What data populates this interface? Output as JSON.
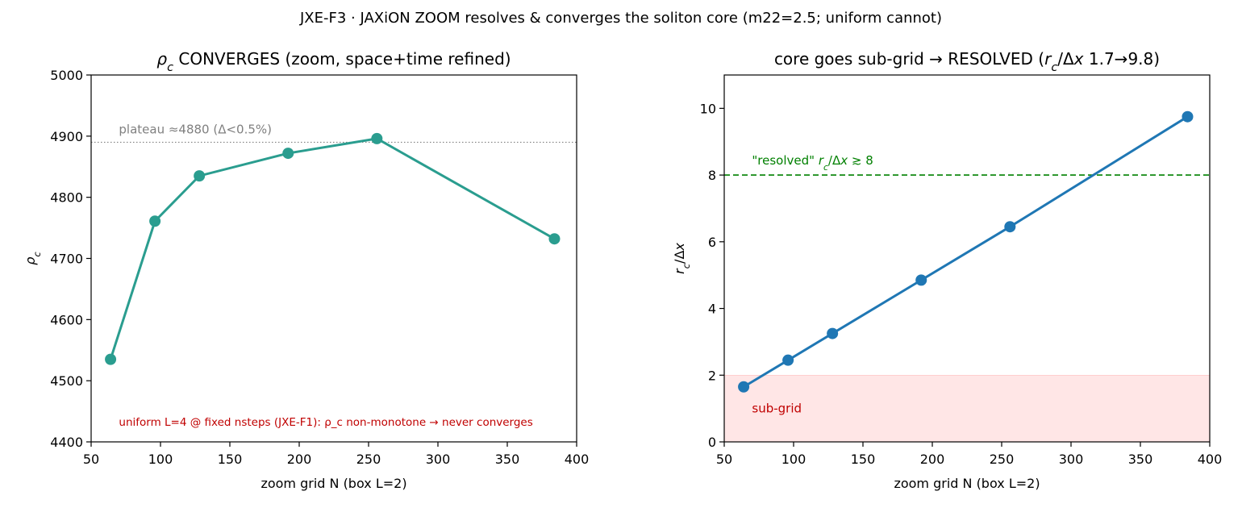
{
  "suptitle": "JXE-F3 · JAXiON ZOOM resolves & converges the soliton core (m22=2.5; uniform cannot)",
  "chart_data": [
    {
      "type": "line",
      "title": "ρc CONVERGES (zoom, space+time refined)",
      "xlabel": "zoom grid N (box L=2)",
      "ylabel": "ρc",
      "xlim": [
        50,
        400
      ],
      "ylim": [
        4400,
        5000
      ],
      "xticks": [
        50,
        100,
        150,
        200,
        250,
        300,
        350,
        400
      ],
      "yticks": [
        4400,
        4500,
        4600,
        4700,
        4800,
        4900,
        5000
      ],
      "grid": false,
      "series": [
        {
          "color": "#2a9d8f",
          "x": [
            64,
            96,
            128,
            192,
            256,
            384
          ],
          "y": [
            4535,
            4761,
            4835,
            4872,
            4896,
            4732
          ]
        }
      ],
      "reference_lines": [
        {
          "orientation": "horizontal",
          "y": 4890,
          "style": "dotted",
          "color": "#808080",
          "label": "plateau ≈4880 (Δ<0.5%)"
        }
      ],
      "annotations": [
        {
          "text": "uniform L=4 @ fixed nsteps (JXE-F1): ρ_c non-monotone → never converges",
          "x": 70,
          "y": 4433,
          "color": "#c00000"
        }
      ]
    },
    {
      "type": "line",
      "title": "core goes sub-grid → RESOLVED (rc/Δx 1.7→9.8)",
      "xlabel": "zoom grid N (box L=2)",
      "ylabel": "rc/Δx",
      "xlim": [
        50,
        400
      ],
      "ylim": [
        0,
        11
      ],
      "xticks": [
        50,
        100,
        150,
        200,
        250,
        300,
        350,
        400
      ],
      "yticks": [
        0,
        2,
        4,
        6,
        8,
        10
      ],
      "grid": false,
      "series": [
        {
          "color": "#1f77b4",
          "x": [
            64,
            96,
            128,
            192,
            256,
            384
          ],
          "y": [
            1.65,
            2.45,
            3.25,
            4.85,
            6.45,
            9.75
          ]
        }
      ],
      "reference_lines": [
        {
          "orientation": "horizontal",
          "y": 8,
          "style": "dashed",
          "color": "#008000",
          "label": "\"resolved\"  rc/Δx ≳ 8"
        }
      ],
      "shaded_regions": [
        {
          "y0": 0,
          "y1": 2,
          "color": "#ffe6e6",
          "label": "sub-grid"
        }
      ]
    }
  ]
}
